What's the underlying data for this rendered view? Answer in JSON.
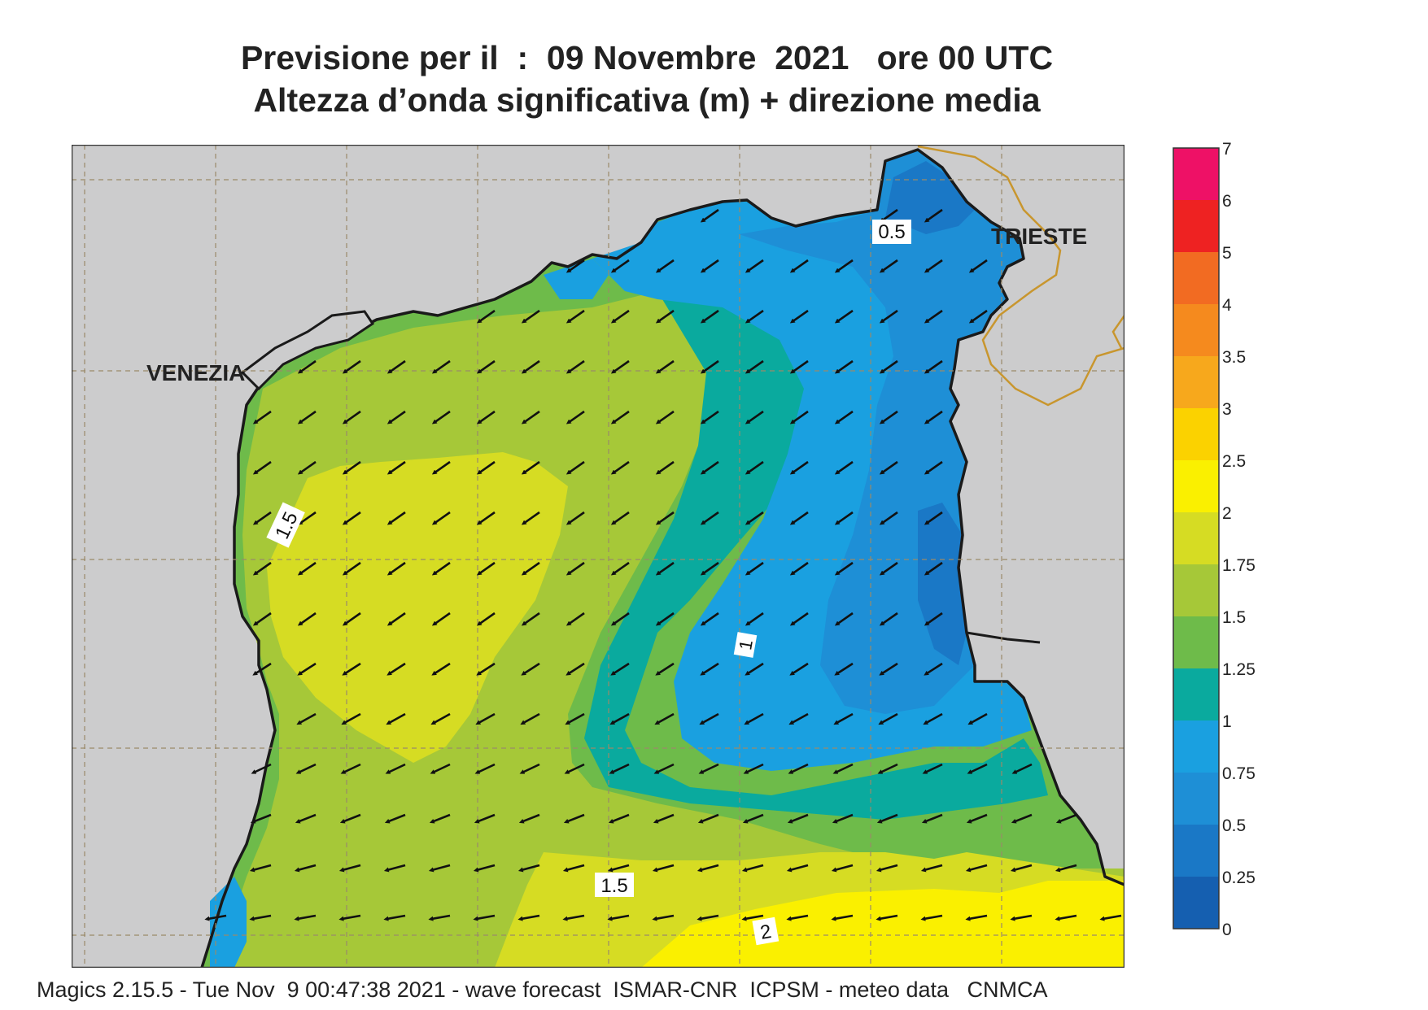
{
  "title_line1": "Previsione per il  :  09 Novembre  2021   ore 00 UTC",
  "title_line2": "Altezza d’onda significativa (m) + direzione media",
  "cities": [
    {
      "name": "VENEZIA"
    },
    {
      "name": "TRIESTE"
    }
  ],
  "contour_labels": [
    "0.5",
    "1.5",
    "1",
    "1.5",
    "2"
  ],
  "colorbar": {
    "ticks": [
      "7",
      "6",
      "5",
      "4",
      "3.5",
      "3",
      "2.5",
      "2",
      "1.75",
      "1.5",
      "1.25",
      "1",
      "0.75",
      "0.5",
      "0.25",
      "0"
    ],
    "colors": [
      "#ee1166",
      "#ee2222",
      "#f26b22",
      "#f58a1e",
      "#f7a81c",
      "#fbd200",
      "#faf000",
      "#d6dc23",
      "#a6c838",
      "#6ebb4a",
      "#0aaa9e",
      "#1aa0e0",
      "#1e8fd6",
      "#1a78c6",
      "#155fb0"
    ]
  },
  "colors": {
    "land": "#cccccd",
    "coast": "#1a1a1a",
    "border": "#c8962e",
    "grid": "#9a8a6a",
    "arrow": "#111111"
  },
  "footer": "Magics 2.15.5 - Tue Nov  9 00:47:38 2021 - wave forecast  ISMAR-CNR  ICPSM - meteo data   CNMCA"
}
